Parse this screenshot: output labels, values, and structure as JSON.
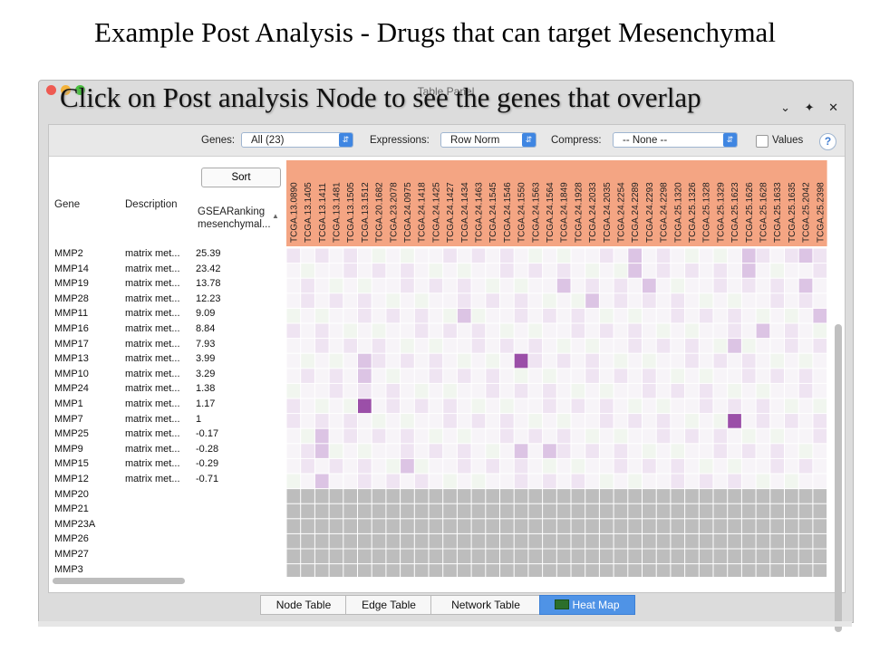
{
  "slide": {
    "title": "Example Post Analysis - Drugs that can target Mesenchymal",
    "overlay_caption": "Click on Post analysis Node to see the genes that overlap"
  },
  "window": {
    "panel_title": "Table Panel",
    "controls": "⌄ ✦ ✕"
  },
  "toolbar": {
    "genes_label": "Genes:",
    "genes_value": "All (23)",
    "expressions_label": "Expressions:",
    "expressions_value": "Row Norm",
    "compress_label": "Compress:",
    "compress_value": "-- None --",
    "values_label": "Values",
    "help": "?"
  },
  "table": {
    "header_gene": "Gene",
    "header_description": "Description",
    "sort_button": "Sort",
    "header_rank_line1": "GSEARanking",
    "header_rank_line2": "mesenchymal...",
    "rows": [
      {
        "gene": "MMP2",
        "desc": "matrix met...",
        "rank": "25.39"
      },
      {
        "gene": "MMP14",
        "desc": "matrix met...",
        "rank": "23.42"
      },
      {
        "gene": "MMP19",
        "desc": "matrix met...",
        "rank": "13.78"
      },
      {
        "gene": "MMP28",
        "desc": "matrix met...",
        "rank": "12.23"
      },
      {
        "gene": "MMP11",
        "desc": "matrix met...",
        "rank": "9.09"
      },
      {
        "gene": "MMP16",
        "desc": "matrix met...",
        "rank": "8.84"
      },
      {
        "gene": "MMP17",
        "desc": "matrix met...",
        "rank": "7.93"
      },
      {
        "gene": "MMP13",
        "desc": "matrix met...",
        "rank": "3.99"
      },
      {
        "gene": "MMP10",
        "desc": "matrix met...",
        "rank": "3.29"
      },
      {
        "gene": "MMP24",
        "desc": "matrix met...",
        "rank": "1.38"
      },
      {
        "gene": "MMP1",
        "desc": "matrix met...",
        "rank": "1.17"
      },
      {
        "gene": "MMP7",
        "desc": "matrix met...",
        "rank": "1"
      },
      {
        "gene": "MMP25",
        "desc": "matrix met...",
        "rank": "-0.17"
      },
      {
        "gene": "MMP9",
        "desc": "matrix met...",
        "rank": "-0.28"
      },
      {
        "gene": "MMP15",
        "desc": "matrix met...",
        "rank": "-0.29"
      },
      {
        "gene": "MMP12",
        "desc": "matrix met...",
        "rank": "-0.71"
      },
      {
        "gene": "MMP20",
        "desc": "",
        "rank": ""
      },
      {
        "gene": "MMP21",
        "desc": "",
        "rank": ""
      },
      {
        "gene": "MMP23A",
        "desc": "",
        "rank": ""
      },
      {
        "gene": "MMP26",
        "desc": "",
        "rank": ""
      },
      {
        "gene": "MMP27",
        "desc": "",
        "rank": ""
      },
      {
        "gene": "MMP3",
        "desc": "",
        "rank": ""
      }
    ],
    "samples": [
      "TCGA.13.0890",
      "TCGA.13.1405",
      "TCGA.13.1411",
      "TCGA.13.1481",
      "TCGA.13.1505",
      "TCGA.13.1512",
      "TCGA.20.1682",
      "TCGA.23.2078",
      "TCGA.24.0975",
      "TCGA.24.1418",
      "TCGA.24.1425",
      "TCGA.24.1427",
      "TCGA.24.1434",
      "TCGA.24.1463",
      "TCGA.24.1545",
      "TCGA.24.1546",
      "TCGA.24.1550",
      "TCGA.24.1563",
      "TCGA.24.1564",
      "TCGA.24.1849",
      "TCGA.24.1928",
      "TCGA.24.2033",
      "TCGA.24.2035",
      "TCGA.24.2254",
      "TCGA.24.2289",
      "TCGA.24.2293",
      "TCGA.24.2298",
      "TCGA.25.1320",
      "TCGA.25.1326",
      "TCGA.25.1328",
      "TCGA.25.1329",
      "TCGA.25.1623",
      "TCGA.25.1626",
      "TCGA.25.1628",
      "TCGA.25.1633",
      "TCGA.25.1635",
      "TCGA.25.2042",
      "TCGA.25.2398"
    ],
    "colors": {
      "header_bg": "#f4a583",
      "high": "#9b4fa8",
      "missing": "#bdbdbd"
    }
  },
  "tabs": [
    {
      "label": "Node Table",
      "active": false
    },
    {
      "label": "Edge Table",
      "active": false
    },
    {
      "label": "Network Table",
      "active": false
    },
    {
      "label": "Heat Map",
      "active": true
    }
  ]
}
